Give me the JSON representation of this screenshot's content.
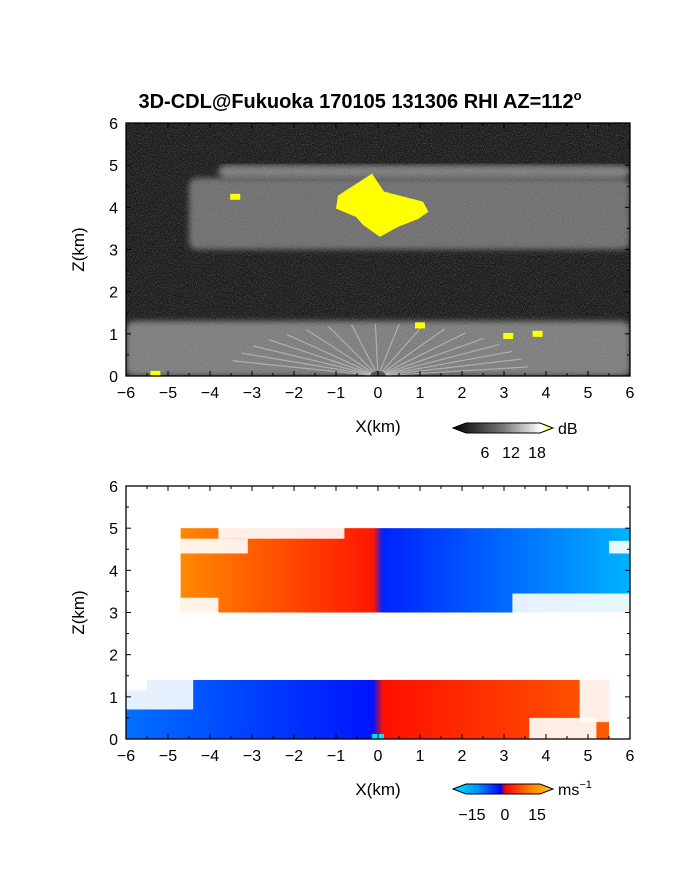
{
  "figure": {
    "title": "3D-CDL@Fukuoka 170105 131306 RHI AZ=112",
    "title_superscript": "o"
  },
  "chart_data": [
    {
      "type": "heatmap",
      "name": "reflectivity-panel",
      "xlabel": "X(km)",
      "ylabel": "Z(km)",
      "xlim": [
        -6,
        6
      ],
      "ylim": [
        0,
        6
      ],
      "xticks": [
        "−6",
        "−5",
        "−4",
        "−3",
        "−2",
        "−1",
        "0",
        "1",
        "2",
        "3",
        "4",
        "5",
        "6"
      ],
      "yticks": [
        "0",
        "1",
        "2",
        "3",
        "4",
        "5",
        "6"
      ],
      "colorbar": {
        "unit": "dB",
        "ticks": [
          "6",
          "12",
          "18"
        ],
        "range": [
          0,
          20
        ],
        "colors": [
          "#000000",
          "#ffffff",
          "#ffff00"
        ]
      },
      "features": [
        {
          "label": "thin layer",
          "x": [
            -3.8,
            6.0
          ],
          "z": [
            4.7,
            5.0
          ],
          "level": 12
        },
        {
          "label": "cloud layer",
          "x": [
            -4.5,
            6.0
          ],
          "z": [
            3.0,
            4.7
          ],
          "level": 10
        },
        {
          "label": "saturated core",
          "x": [
            -1.0,
            1.2
          ],
          "z": [
            3.3,
            4.8
          ],
          "level": 20
        },
        {
          "label": "low layer",
          "x": [
            -6.0,
            6.0
          ],
          "z": [
            0.0,
            1.3
          ],
          "level": 12
        }
      ]
    },
    {
      "type": "heatmap",
      "name": "velocity-panel",
      "xlabel": "X(km)",
      "ylabel": "Z(km)",
      "xlim": [
        -6,
        6
      ],
      "ylim": [
        0,
        6
      ],
      "xticks": [
        "−6",
        "−5",
        "−4",
        "−3",
        "−2",
        "−1",
        "0",
        "1",
        "2",
        "3",
        "4",
        "5",
        "6"
      ],
      "yticks": [
        "0",
        "1",
        "2",
        "3",
        "4",
        "5",
        "6"
      ],
      "colorbar": {
        "unit": "ms",
        "unit_superscript": "−1",
        "ticks": [
          "−15",
          "0",
          "15"
        ],
        "range": [
          -20,
          20
        ],
        "colors": [
          "#00e5ff",
          "#0040ff",
          "#0000ff",
          "#ff0000",
          "#ff8000",
          "#ffd000"
        ]
      },
      "features": [
        {
          "label": "upper echo",
          "x": [
            -4.7,
            6.0
          ],
          "z": [
            3.0,
            5.0
          ],
          "left_velocity": 12,
          "right_velocity": -14
        },
        {
          "label": "lower echo",
          "x": [
            -6.0,
            5.5
          ],
          "z": [
            0.0,
            1.4
          ],
          "left_velocity": -8,
          "right_velocity": 8
        }
      ]
    }
  ]
}
